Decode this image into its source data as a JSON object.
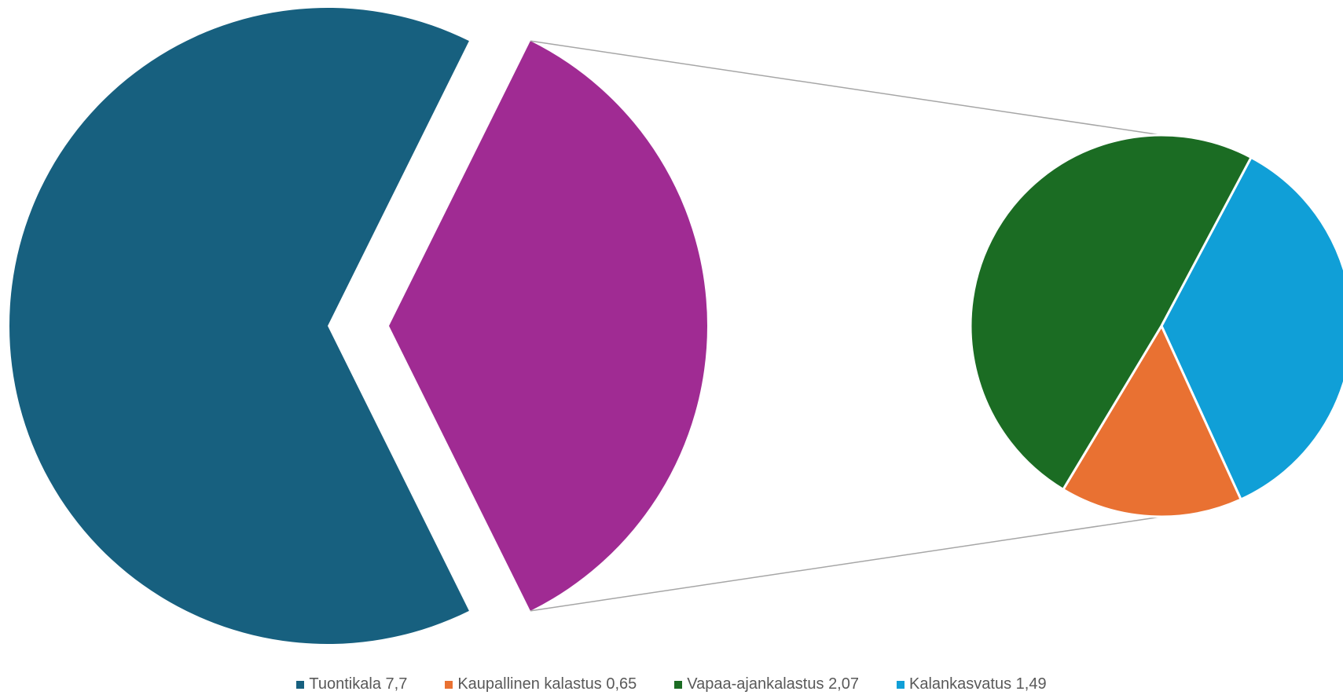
{
  "chart_data": {
    "type": "pie",
    "subtype": "pie-of-pie",
    "title": "",
    "legend_position": "bottom",
    "slices": [
      {
        "label": "Tuontikala",
        "value": 7.7,
        "value_label": "7,7",
        "color": "#17607f",
        "group": "main"
      },
      {
        "label": "Kaupallinen kalastus",
        "value": 0.65,
        "value_label": "0,65",
        "color": "#e97132",
        "group": "secondary"
      },
      {
        "label": "Vapaa-ajankalastus",
        "value": 2.07,
        "value_label": "2,07",
        "color": "#1b6c23",
        "group": "secondary"
      },
      {
        "label": "Kalankasvatus",
        "value": 1.49,
        "value_label": "1,49",
        "color": "#109fd7",
        "group": "secondary"
      }
    ],
    "other_slice_color": "#a02b93",
    "connector_color": "#a6a6a6"
  }
}
